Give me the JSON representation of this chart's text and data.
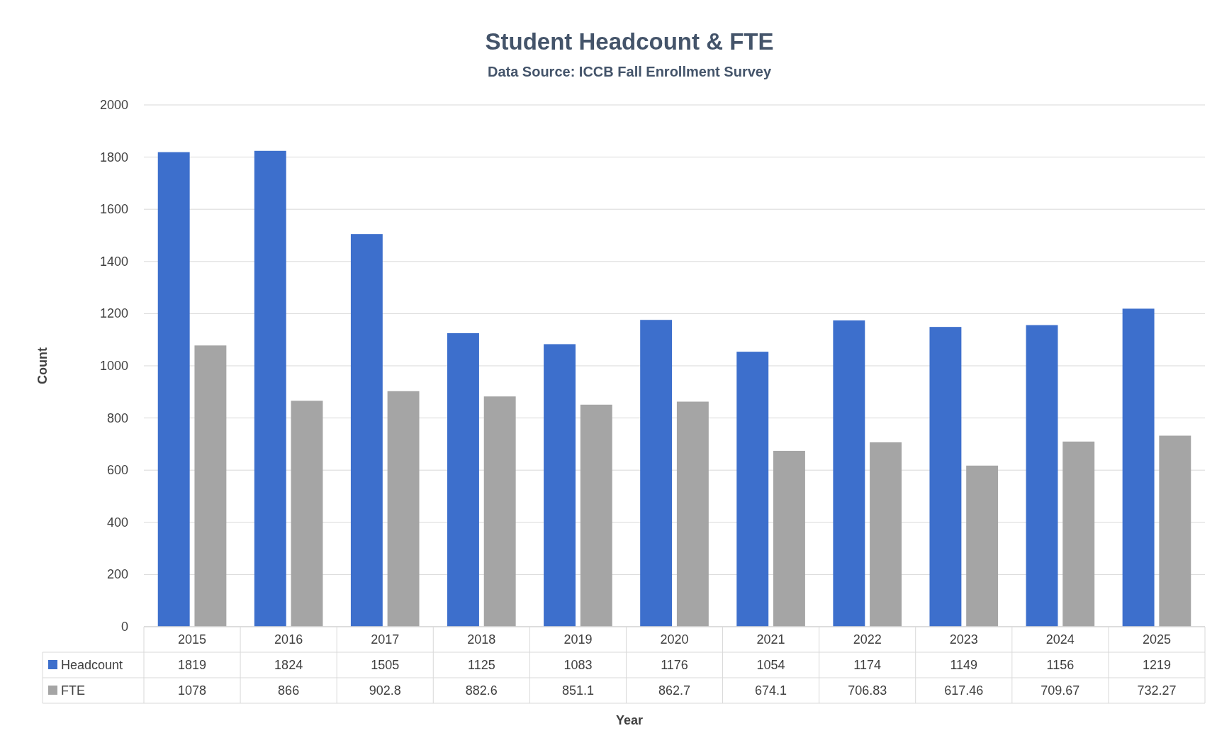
{
  "chart_data": {
    "type": "bar",
    "title": "Student Headcount & FTE",
    "subtitle": "Data Source: ICCB Fall Enrollment Survey",
    "annotations": [
      "Year"
    ],
    "ylabel": "Count",
    "categories": [
      "2015",
      "2016",
      "2017",
      "2018",
      "2019",
      "2020",
      "2021",
      "2022",
      "2023",
      "2024",
      "2025"
    ],
    "series": [
      {
        "name": "Headcount",
        "color": "#3d6fcc",
        "values": [
          1819,
          1824,
          1505,
          1125,
          1083,
          1176,
          1054,
          1174,
          1149,
          1156,
          1219
        ]
      },
      {
        "name": "FTE",
        "color": "#a5a5a5",
        "values": [
          1078,
          866,
          902.8,
          882.6,
          851.1,
          862.7,
          674.1,
          706.83,
          617.46,
          709.67,
          732.27
        ]
      }
    ],
    "ylim": [
      0,
      2000
    ],
    "yticks": [
      0,
      200,
      400,
      600,
      800,
      1000,
      1200,
      1400,
      1600,
      1800,
      2000
    ],
    "grid": "y",
    "legend": "bottom",
    "data_labels": true
  }
}
